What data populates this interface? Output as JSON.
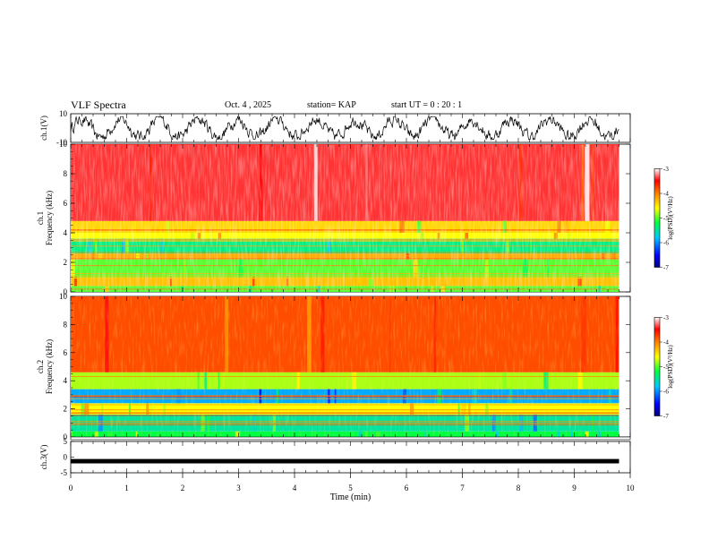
{
  "header": {
    "title": "VLF Spectra",
    "date": "Oct. 4 , 2025",
    "station": "station= KAP",
    "start": "start UT =  0 : 20 : 1"
  },
  "chart_data": [
    {
      "type": "line",
      "name": "ch1-waveform",
      "ylabel": "ch.1(V)",
      "ylim": [
        -10,
        10
      ],
      "yticks": [
        "10",
        "-10"
      ],
      "xlim": [
        0,
        10
      ],
      "x_end": 9.8,
      "description_values": "noisy waveform oscillating roughly between -6 and 6 V"
    },
    {
      "type": "heatmap",
      "name": "ch1-spectrogram",
      "ylabel_top": "ch.1",
      "ylabel": "Frequency (kHz)",
      "ylim": [
        0,
        10
      ],
      "yticks": [
        "0",
        "2",
        "4",
        "6",
        "8",
        "10"
      ],
      "xlim": [
        0,
        10
      ],
      "x_end": 9.8,
      "colorbar": {
        "label": "log(PSD)(V²/Hz)",
        "range": [
          -7,
          -3
        ],
        "ticks": [
          "-3",
          "-4",
          "-5",
          "-6",
          "-7"
        ]
      },
      "bands_kHz": [
        {
          "from": 0,
          "to": 0.4,
          "level": -5.0
        },
        {
          "from": 0.4,
          "to": 1.0,
          "level": -4.3
        },
        {
          "from": 1.0,
          "to": 2.2,
          "level": -5.0
        },
        {
          "from": 2.2,
          "to": 2.6,
          "level": -4.2
        },
        {
          "from": 2.6,
          "to": 3.6,
          "level": -5.4
        },
        {
          "from": 3.6,
          "to": 4.0,
          "level": -4.6
        },
        {
          "from": 4.0,
          "to": 4.8,
          "level": -4.4
        },
        {
          "from": 4.8,
          "to": 10.0,
          "level": -3.4
        }
      ]
    },
    {
      "type": "heatmap",
      "name": "ch2-spectrogram",
      "ylabel_top": "ch.2",
      "ylabel": "Frequency (kHz)",
      "ylim": [
        0,
        10
      ],
      "yticks": [
        "0",
        "2",
        "4",
        "6",
        "8",
        "10"
      ],
      "xlim": [
        0,
        10
      ],
      "x_end": 9.8,
      "colorbar": {
        "label": "log(PSD)(V²/Hz)",
        "range": [
          -7,
          -3
        ],
        "ticks": [
          "-3",
          "-4",
          "-5",
          "-6",
          "-7"
        ]
      },
      "bands_kHz": [
        {
          "from": 0,
          "to": 0.4,
          "level": -5.2
        },
        {
          "from": 0.4,
          "to": 1.6,
          "level": -5.5
        },
        {
          "from": 1.6,
          "to": 2.4,
          "level": -4.6
        },
        {
          "from": 2.4,
          "to": 3.4,
          "level": -5.9
        },
        {
          "from": 3.4,
          "to": 4.6,
          "level": -4.8
        },
        {
          "from": 4.6,
          "to": 10.0,
          "level": -3.8
        }
      ]
    },
    {
      "type": "line",
      "name": "ch3-waveform",
      "ylabel": "ch.3(V)",
      "ylim": [
        -5,
        5
      ],
      "yticks": [
        "5",
        "0",
        "-5"
      ],
      "xlim": [
        0,
        10
      ],
      "x_end": 9.8,
      "xlabel": "Time (min)",
      "xticks": [
        "0",
        "1",
        "2",
        "3",
        "4",
        "5",
        "6",
        "7",
        "8",
        "9",
        "10"
      ],
      "description_values": "thick flat trace near -1.3 V"
    }
  ]
}
